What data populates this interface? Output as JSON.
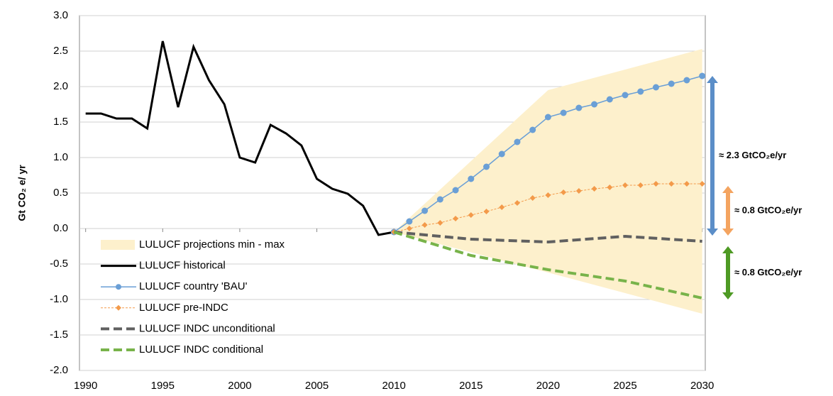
{
  "chart_data": {
    "type": "line",
    "y_label": "Gt CO₂ e/ yr",
    "xlim": [
      1989.6,
      2030.2
    ],
    "ylim": [
      -2,
      3
    ],
    "xticks": [
      1990,
      1995,
      2000,
      2005,
      2010,
      2015,
      2020,
      2025,
      2030
    ],
    "yticks": [
      {
        "value": 3,
        "label": "3.0"
      },
      2.5,
      {
        "value": 2,
        "label": "2.0"
      },
      1.5,
      {
        "value": 1,
        "label": "1.0"
      },
      0.5,
      {
        "value": 0,
        "label": "0.0"
      },
      -0.5,
      {
        "value": -1,
        "label": "-1.0"
      },
      -1.5,
      {
        "value": -2,
        "label": "-2.0"
      }
    ],
    "grid": true,
    "series": [
      {
        "name": "LULUCF projections min - max",
        "kind": "band",
        "color": "#fdf0cc",
        "x": [
          2010,
          2020,
          2030
        ],
        "lower": [
          -0.05,
          -0.62,
          -1.2
        ],
        "upper": [
          -0.05,
          1.95,
          2.53
        ]
      },
      {
        "name": "LULUCF historical",
        "kind": "line",
        "color": "#000000",
        "width": 3,
        "dash": "none",
        "marker": "none",
        "x": [
          1990,
          1991,
          1992,
          1993,
          1994,
          1995,
          1996,
          1997,
          1998,
          1999,
          2000,
          2001,
          2002,
          2003,
          2004,
          2005,
          2006,
          2007,
          2008,
          2009,
          2010
        ],
        "values": [
          1.62,
          1.62,
          1.55,
          1.55,
          1.41,
          2.64,
          1.71,
          2.56,
          2.09,
          1.75,
          1.0,
          0.93,
          1.46,
          1.34,
          1.17,
          0.7,
          0.56,
          0.49,
          0.32,
          -0.09,
          -0.05
        ]
      },
      {
        "name": "LULUCF country 'BAU'",
        "kind": "line",
        "color": "#6a9fd6",
        "width": 1.5,
        "dash": "none",
        "marker": "circle",
        "x": [
          2010,
          2011,
          2012,
          2013,
          2014,
          2015,
          2016,
          2017,
          2018,
          2019,
          2020,
          2021,
          2022,
          2023,
          2024,
          2025,
          2026,
          2027,
          2028,
          2029,
          2030
        ],
        "values": [
          -0.05,
          0.1,
          0.25,
          0.41,
          0.54,
          0.7,
          0.87,
          1.05,
          1.22,
          1.39,
          1.57,
          1.63,
          1.7,
          1.75,
          1.82,
          1.88,
          1.93,
          1.99,
          2.04,
          2.09,
          2.15
        ]
      },
      {
        "name": "LULUCF pre-INDC",
        "kind": "line",
        "color": "#f39a4a",
        "width": 1,
        "dash": "3,2",
        "marker": "diamond",
        "x": [
          2010,
          2011,
          2012,
          2013,
          2014,
          2015,
          2016,
          2017,
          2018,
          2019,
          2020,
          2021,
          2022,
          2023,
          2024,
          2025,
          2026,
          2027,
          2028,
          2029,
          2030
        ],
        "values": [
          -0.05,
          0.0,
          0.05,
          0.08,
          0.14,
          0.19,
          0.24,
          0.3,
          0.36,
          0.43,
          0.47,
          0.51,
          0.53,
          0.56,
          0.58,
          0.61,
          0.61,
          0.63,
          0.63,
          0.63,
          0.63
        ]
      },
      {
        "name": "LULUCF INDC unconditional",
        "kind": "line",
        "color": "#606060",
        "width": 4,
        "dash": "12,6",
        "marker": "none",
        "x": [
          2010,
          2015,
          2020,
          2025,
          2030
        ],
        "values": [
          -0.05,
          -0.15,
          -0.19,
          -0.11,
          -0.18
        ]
      },
      {
        "name": "LULUCF INDC conditional",
        "kind": "line",
        "color": "#78b34a",
        "width": 4,
        "dash": "12,6",
        "marker": "none",
        "x": [
          2010,
          2015,
          2020,
          2025,
          2030
        ],
        "values": [
          -0.05,
          -0.38,
          -0.58,
          -0.74,
          -0.98
        ]
      }
    ],
    "annotations": [
      {
        "text": "≈ 2.3 GtCO₂e/yr",
        "color": "#5b8ec8",
        "from": 2.15,
        "to": -0.1
      },
      {
        "text": "≈ 0.8 GtCO₂e/yr",
        "color": "#f4a460",
        "from": 0.6,
        "to": -0.1
      },
      {
        "text": "≈ 0.8 GtCO₂e/yr",
        "color": "#4e9a24",
        "from": -0.25,
        "to": -1.0
      }
    ]
  }
}
